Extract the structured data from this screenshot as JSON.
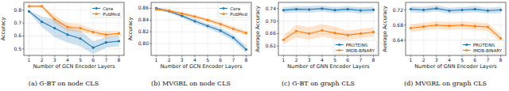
{
  "chart_data": [
    {
      "type": "line",
      "title": "(a) G-BT on node CLS",
      "xlabel": "Number of GCN Encoder Layers",
      "ylabel": "Accuracy",
      "x": [
        1,
        2,
        3,
        4,
        5,
        6,
        7,
        8
      ],
      "xlim": [
        0.6,
        8.4
      ],
      "xticks": [
        1,
        2,
        3,
        4,
        5,
        6,
        7,
        8
      ],
      "ylim": [
        0.45,
        0.86
      ],
      "yticks": [
        0.5,
        0.6,
        0.7,
        0.8
      ],
      "grid": true,
      "legend": "upper right",
      "series": [
        {
          "name": "Cora",
          "color": "#1f77b4",
          "marker": "o",
          "values": [
            0.79,
            0.71,
            0.66,
            0.61,
            0.58,
            0.51,
            0.55,
            0.56
          ],
          "error": [
            0.01,
            0.04,
            0.07,
            0.06,
            0.06,
            0.05,
            0.04,
            0.04
          ]
        },
        {
          "name": "PubMed",
          "color": "#ff7f0e",
          "marker": "o",
          "values": [
            0.83,
            0.83,
            0.73,
            0.67,
            0.66,
            0.63,
            0.61,
            0.62
          ],
          "error": [
            0.01,
            0.01,
            0.03,
            0.03,
            0.03,
            0.02,
            0.03,
            0.02
          ]
        }
      ]
    },
    {
      "type": "line",
      "title": "(b) MVGRL on node CLS",
      "xlabel": "Number of GCN Encoder Layers",
      "ylabel": "Accuracy",
      "x": [
        1,
        2,
        3,
        4,
        5,
        6,
        7,
        8
      ],
      "xlim": [
        0.6,
        8.4
      ],
      "xticks": [
        1,
        2,
        3,
        4,
        5,
        6,
        7,
        8
      ],
      "ylim": [
        0.78,
        0.87
      ],
      "yticks": [
        {
          "value": 0.8,
          "label": "0.80"
        },
        0.82,
        0.84,
        0.86
      ],
      "grid": true,
      "legend": "upper right",
      "series": [
        {
          "name": "Cora",
          "color": "#1f77b4",
          "marker": "o",
          "values": [
            0.86,
            0.855,
            0.847,
            0.838,
            0.83,
            0.822,
            0.81,
            0.79
          ],
          "error": [
            0.002,
            0.003,
            0.003,
            0.004,
            0.004,
            0.005,
            0.005,
            0.006
          ]
        },
        {
          "name": "PubMed",
          "color": "#ff7f0e",
          "marker": "o",
          "values": [
            0.858,
            0.856,
            0.851,
            0.846,
            0.84,
            0.833,
            0.825,
            0.818
          ],
          "error": [
            0.002,
            0.002,
            0.003,
            0.003,
            0.003,
            0.004,
            0.004,
            0.004
          ]
        }
      ]
    },
    {
      "type": "line",
      "title": "(c) G-BT on graph CLS",
      "xlabel": "Number of GNN Encoder Layers",
      "ylabel": "Average Accuracy",
      "x": [
        1,
        2,
        3,
        4,
        5,
        6,
        7,
        8
      ],
      "xlim": [
        0.6,
        8.4
      ],
      "xticks": [
        1,
        2,
        3,
        4,
        5,
        6,
        7,
        8
      ],
      "ylim": [
        0.59,
        0.76
      ],
      "yticks": [
        0.62,
        0.66,
        {
          "value": 0.7,
          "label": "0.70"
        },
        0.74
      ],
      "grid": true,
      "legend": "lower right",
      "series": [
        {
          "name": "PROTEINS",
          "color": "#1f77b4",
          "marker": "o",
          "values": [
            0.735,
            0.738,
            0.737,
            0.74,
            0.735,
            0.738,
            0.734,
            0.736
          ],
          "error": [
            0.01,
            0.01,
            0.01,
            0.01,
            0.01,
            0.01,
            0.01,
            0.01
          ]
        },
        {
          "name": "IMDB-BINARY",
          "color": "#ff7f0e",
          "marker": "o",
          "values": [
            0.64,
            0.668,
            0.66,
            0.67,
            0.662,
            0.655,
            0.66,
            0.665
          ],
          "error": [
            0.015,
            0.02,
            0.02,
            0.02,
            0.02,
            0.015,
            0.015,
            0.015
          ]
        }
      ]
    },
    {
      "type": "line",
      "title": "(d) MVGRL on graph CLS",
      "xlabel": "Number of GNN Encoder Layers",
      "ylabel": "Average Accuracy",
      "x": [
        1,
        2,
        3,
        4,
        5,
        6,
        7,
        8
      ],
      "xlim": [
        0.6,
        8.4
      ],
      "xticks": [
        1,
        2,
        3,
        4,
        5,
        6,
        7,
        8
      ],
      "ylim": [
        0.6,
        0.74
      ],
      "yticks": [
        0.64,
        0.68,
        0.72
      ],
      "grid": true,
      "legend": "lower right",
      "series": [
        {
          "name": "PROTEINS",
          "color": "#1f77b4",
          "marker": "o",
          "values": [
            0.722,
            0.72,
            0.724,
            0.718,
            0.72,
            0.722,
            0.718,
            0.72
          ],
          "error": [
            0.008,
            0.008,
            0.008,
            0.008,
            0.008,
            0.008,
            0.008,
            0.008
          ]
        },
        {
          "name": "IMDB-BINARY",
          "color": "#ff7f0e",
          "marker": "o",
          "values": [
            0.672,
            0.676,
            0.68,
            0.678,
            0.68,
            0.677,
            0.675,
            0.645
          ],
          "error": [
            0.01,
            0.01,
            0.01,
            0.01,
            0.01,
            0.01,
            0.01,
            0.01
          ]
        }
      ]
    }
  ]
}
